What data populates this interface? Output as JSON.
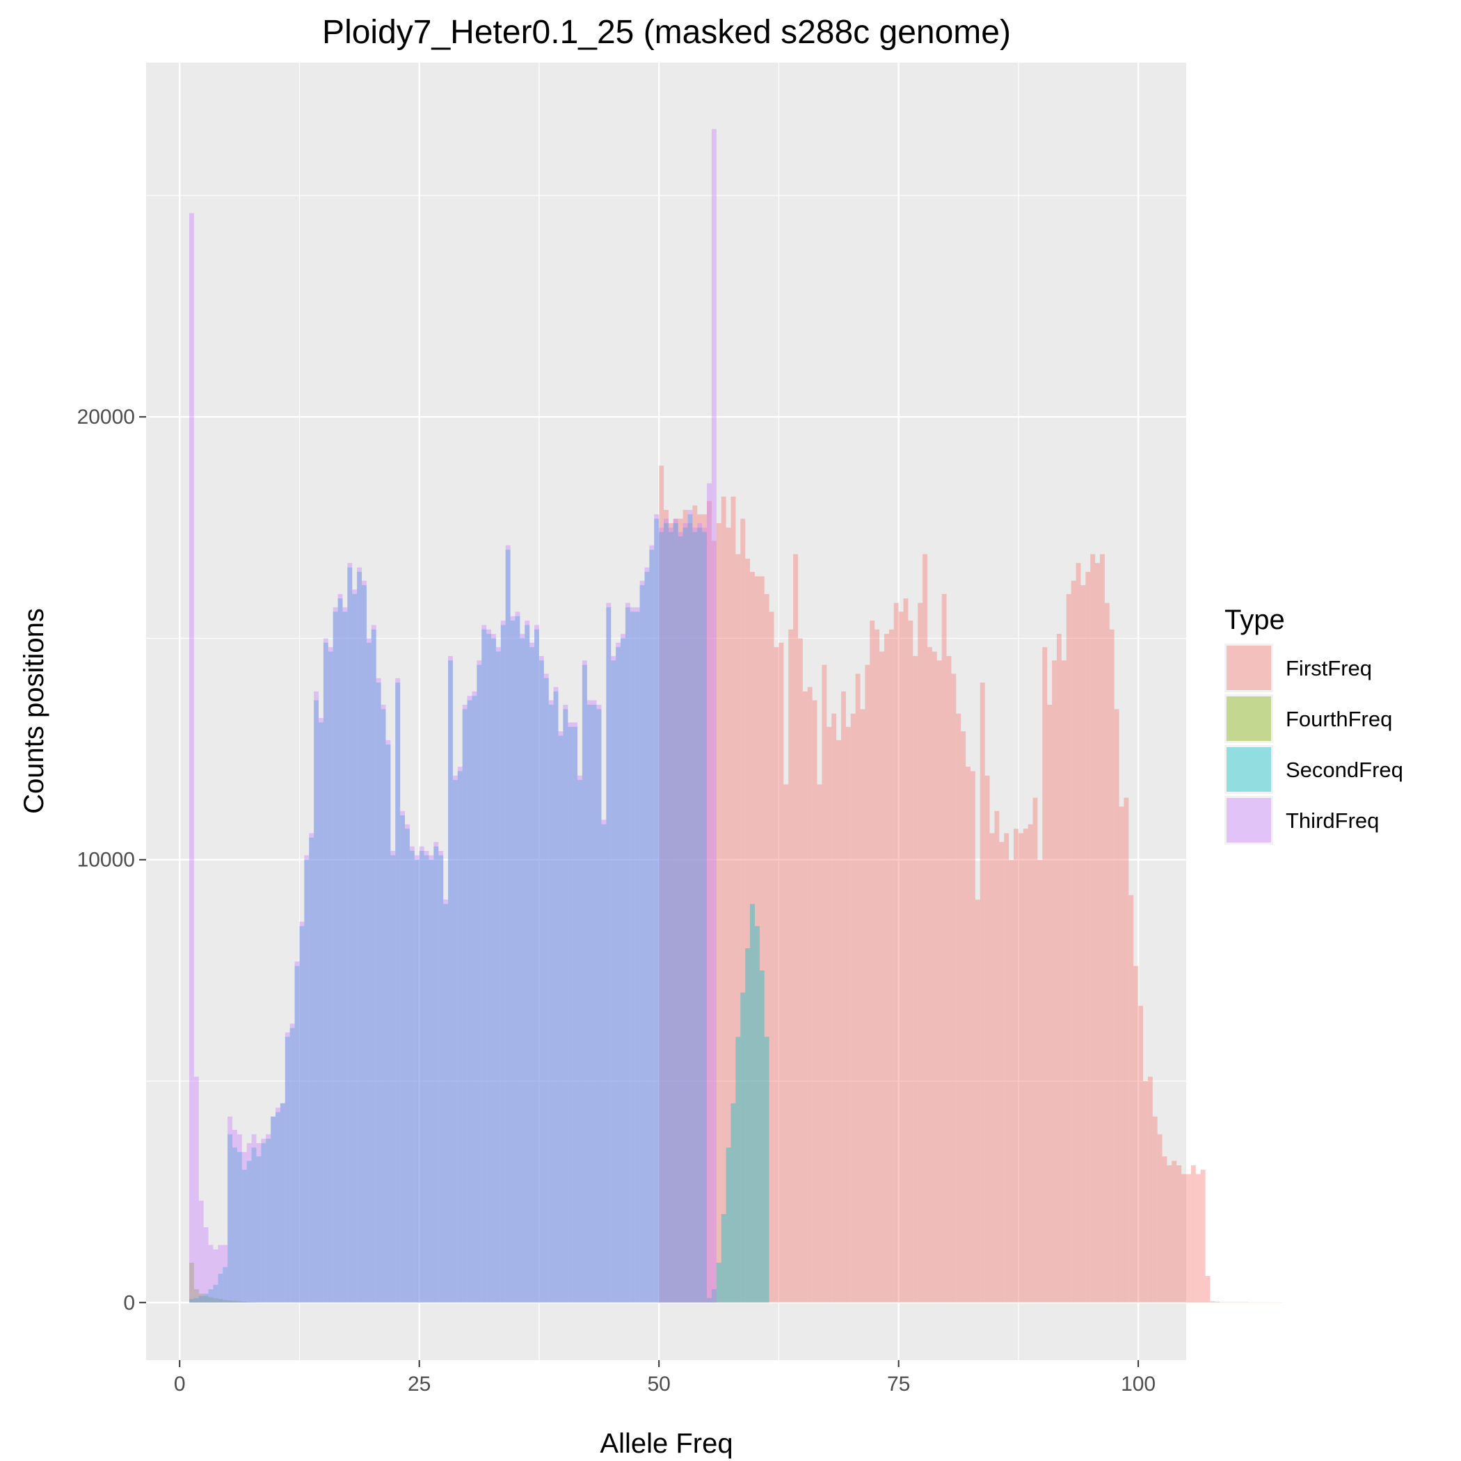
{
  "chart_data": {
    "type": "histogram",
    "title": "Ploidy7_Heter0.1_25 (masked s288c genome)",
    "xlabel": "Allele Freq",
    "ylabel": "Counts positions",
    "xlim": [
      -3.5,
      105
    ],
    "ylim": [
      -1300,
      28000
    ],
    "x_ticks": [
      0,
      25,
      50,
      75,
      100
    ],
    "y_ticks": [
      0,
      10000,
      20000
    ],
    "x_tick_labels": [
      "0",
      "25",
      "50",
      "75",
      "100"
    ],
    "y_tick_labels": [
      "0",
      "10000",
      "20000"
    ],
    "grid": true,
    "bin_width": 0.5,
    "legend": {
      "title": "Type",
      "position": "right",
      "entries": [
        "FirstFreq",
        "FourthFreq",
        "SecondFreq",
        "ThirdFreq"
      ]
    },
    "series": [
      {
        "name": "FirstFreq",
        "color": "#F8766D",
        "x_start": 50,
        "values": [
          18900,
          17900,
          17600,
          17700,
          17700,
          17900,
          17600,
          18000,
          17800,
          17800,
          18100,
          17200,
          17600,
          18200,
          17500,
          18200,
          16900,
          17700,
          16800,
          16500,
          16400,
          16400,
          16000,
          15600,
          14800,
          14900,
          11700,
          15200,
          16900,
          15000,
          13800,
          13900,
          13600,
          11700,
          14400,
          13000,
          13300,
          12700,
          13800,
          13000,
          13300,
          14200,
          13400,
          14400,
          15400,
          15200,
          14700,
          15100,
          15200,
          15800,
          15600,
          15900,
          15400,
          14600,
          15800,
          16900,
          14800,
          14700,
          14500,
          16000,
          14600,
          14200,
          13300,
          12900,
          12100,
          12000,
          9100,
          14000,
          11900,
          10600,
          11100,
          10400,
          10600,
          10000,
          10700,
          10600,
          10700,
          10800,
          11400,
          10000,
          14800,
          13500,
          14500,
          15100,
          14500,
          16000,
          16300,
          16700,
          16200,
          16500,
          16900,
          16700,
          16900,
          15800,
          15200,
          13400,
          11200,
          11400,
          9200,
          7600,
          6700,
          5000,
          5100,
          4200,
          3800,
          3300,
          3100,
          3200,
          3100,
          2900,
          2900,
          3100,
          2900,
          3000,
          600,
          30,
          20,
          10,
          10,
          10,
          10,
          10,
          10,
          5,
          5,
          5,
          5,
          5,
          5,
          5
        ]
      },
      {
        "name": "FourthFreq",
        "color": "#7CAE00",
        "x_start": 1,
        "values": [
          900,
          300,
          200,
          150,
          120,
          100,
          80,
          60,
          50,
          40,
          30,
          20,
          10,
          5
        ]
      },
      {
        "name": "SecondFreq",
        "color": "#00BFC4",
        "x_start": 1,
        "values": [
          80,
          100,
          150,
          200,
          300,
          400,
          650,
          800,
          3800,
          3500,
          3400,
          3000,
          3200,
          3500,
          3300,
          3600,
          3700,
          4200,
          4300,
          4500,
          6000,
          6200,
          7600,
          8500,
          10000,
          10500,
          13600,
          13100,
          14900,
          14700,
          15600,
          15900,
          15600,
          16600,
          16000,
          16500,
          16200,
          14900,
          15200,
          14000,
          13400,
          12600,
          10100,
          14000,
          11000,
          10700,
          10200,
          10000,
          10200,
          10100,
          10000,
          10300,
          10100,
          9000,
          14500,
          11800,
          12000,
          13400,
          13600,
          13700,
          14400,
          15200,
          15100,
          15000,
          14700,
          15300,
          17000,
          15400,
          15500,
          15000,
          15300,
          14800,
          15200,
          14500,
          14100,
          13500,
          13800,
          12800,
          13400,
          13000,
          13000,
          11800,
          14400,
          13500,
          13500,
          13400,
          10800,
          15700,
          14500,
          14800,
          15000,
          15700,
          15600,
          15600,
          16200,
          16500,
          17000,
          17700,
          17400,
          17600,
          17400,
          17600,
          17300,
          17500,
          17800,
          17400,
          17500,
          17400,
          100,
          300,
          900,
          2000,
          3500,
          4500,
          6000,
          7000,
          8000,
          9000,
          8500,
          7500,
          6000
        ]
      },
      {
        "name": "ThirdFreq",
        "color": "#C77CFF",
        "x_start": 1,
        "values": [
          24600,
          5100,
          2300,
          1700,
          1300,
          1200,
          1300,
          1300,
          4200,
          3900,
          3800,
          3400,
          3600,
          3800,
          3600,
          3700,
          3800,
          4200,
          4400,
          4500,
          6100,
          6300,
          7700,
          8600,
          10100,
          10600,
          13800,
          13200,
          15000,
          14800,
          15700,
          16000,
          15700,
          16700,
          16100,
          16600,
          16300,
          15000,
          15300,
          14100,
          13500,
          12700,
          10200,
          14100,
          11100,
          10800,
          10300,
          10100,
          10300,
          10200,
          10100,
          10400,
          10200,
          9100,
          14600,
          11900,
          12100,
          13500,
          13700,
          13800,
          14500,
          15300,
          15200,
          15100,
          14800,
          15400,
          17100,
          15500,
          15600,
          15100,
          15400,
          14900,
          15300,
          14600,
          14200,
          13600,
          13900,
          12900,
          13500,
          13100,
          13100,
          11900,
          14500,
          13600,
          13600,
          13500,
          10900,
          15800,
          14600,
          14900,
          15100,
          15800,
          15700,
          15700,
          16300,
          16600,
          17100,
          17800,
          17500,
          17700,
          17500,
          17700,
          17400,
          17600,
          17900,
          17500,
          17600,
          17500,
          18500,
          26500
        ]
      }
    ]
  }
}
